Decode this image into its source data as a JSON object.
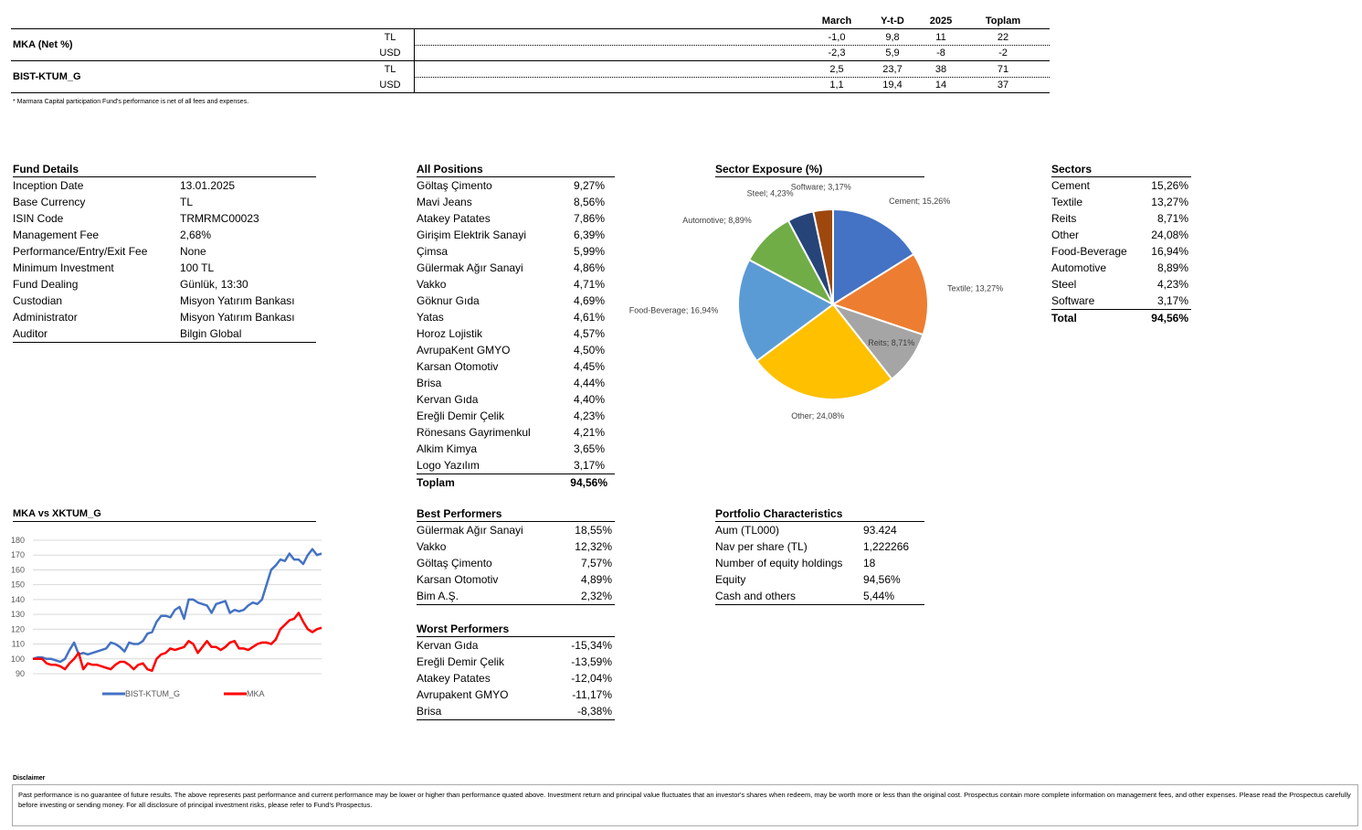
{
  "performance": {
    "columns": [
      "March",
      "Y-t-D",
      "2025",
      "Toplam"
    ],
    "groups": [
      {
        "name": "MKA (Net %)",
        "rows": [
          {
            "currency": "TL",
            "values": [
              "-1,0",
              "9,8",
              "11",
              "22"
            ]
          },
          {
            "currency": "USD",
            "values": [
              "-2,3",
              "5,9",
              "-8",
              "-2"
            ]
          }
        ]
      },
      {
        "name": "BIST-KTUM_G",
        "rows": [
          {
            "currency": "TL",
            "values": [
              "2,5",
              "23,7",
              "38",
              "71"
            ]
          },
          {
            "currency": "USD",
            "values": [
              "1,1",
              "19,4",
              "14",
              "37"
            ]
          }
        ]
      }
    ],
    "note": "* Marmara Capital participation Fund's performance is net of all fees and expenses."
  },
  "fund_details": {
    "title": "Fund Details",
    "rows": [
      [
        "Inception Date",
        "13.01.2025"
      ],
      [
        "Base Currency",
        "TL"
      ],
      [
        "ISIN Code",
        "TRMRMC00023"
      ],
      [
        "Management Fee",
        "2,68%"
      ],
      [
        "Performance/Entry/Exit Fee",
        "None"
      ],
      [
        "Minimum Investment",
        "100 TL"
      ],
      [
        "Fund Dealing",
        "Günlük, 13:30"
      ],
      [
        "Custodian",
        "Misyon Yatırım Bankası"
      ],
      [
        "Administrator",
        "Misyon Yatırım Bankası"
      ],
      [
        "Auditor",
        "Bilgin Global"
      ]
    ]
  },
  "all_positions": {
    "title": "All Positions",
    "rows": [
      [
        "Göltaş Çimento",
        "9,27%"
      ],
      [
        "Mavi Jeans",
        "8,56%"
      ],
      [
        "Atakey Patates",
        "7,86%"
      ],
      [
        "Girişim Elektrik Sanayi",
        "6,39%"
      ],
      [
        "Çimsa",
        "5,99%"
      ],
      [
        "Gülermak Ağır Sanayi",
        "4,86%"
      ],
      [
        "Vakko",
        "4,71%"
      ],
      [
        "Göknur Gıda",
        "4,69%"
      ],
      [
        "Yatas",
        "4,61%"
      ],
      [
        "Horoz Lojistik",
        "4,57%"
      ],
      [
        "AvrupaKent GMYO",
        "4,50%"
      ],
      [
        "Karsan Otomotiv",
        "4,45%"
      ],
      [
        "Brisa",
        "4,44%"
      ],
      [
        "Kervan Gıda",
        "4,40%"
      ],
      [
        "Ereğli Demir Çelik",
        "4,23%"
      ],
      [
        "Rönesans Gayrimenkul",
        "4,21%"
      ],
      [
        "Alkim Kimya",
        "3,65%"
      ],
      [
        "Logo Yazılım",
        "3,17%"
      ]
    ],
    "total": [
      "Toplam",
      "94,56%"
    ]
  },
  "sectors": {
    "title": "Sectors",
    "rows": [
      [
        "Cement",
        "15,26%"
      ],
      [
        "Textile",
        "13,27%"
      ],
      [
        "Reits",
        "8,71%"
      ],
      [
        "Other",
        "24,08%"
      ],
      [
        "Food-Beverage",
        "16,94%"
      ],
      [
        "Automotive",
        "8,89%"
      ],
      [
        "Steel",
        "4,23%"
      ],
      [
        "Software",
        "3,17%"
      ]
    ],
    "total": [
      "Total",
      "94,56%"
    ]
  },
  "best_performers": {
    "title": "Best Performers",
    "rows": [
      [
        "Gülermak Ağır Sanayi",
        "18,55%"
      ],
      [
        "Vakko",
        "12,32%"
      ],
      [
        "Göltaş Çimento",
        "7,57%"
      ],
      [
        "Karsan Otomotiv",
        "4,89%"
      ],
      [
        "Bim A.Ş.",
        "2,32%"
      ]
    ]
  },
  "worst_performers": {
    "title": "Worst Performers",
    "rows": [
      [
        "Kervan Gıda",
        "-15,34%"
      ],
      [
        "Ereğli Demir Çelik",
        "-13,59%"
      ],
      [
        "Atakey Patates",
        "-12,04%"
      ],
      [
        "Avrupakent GMYO",
        "-11,17%"
      ],
      [
        "Brisa",
        "-8,38%"
      ]
    ]
  },
  "portfolio": {
    "title": "Portfolio Characteristics",
    "rows": [
      [
        "Aum (TL000)",
        "93.424"
      ],
      [
        "Nav per share (TL)",
        "1,222266"
      ],
      [
        "Number of equity holdings",
        "18"
      ],
      [
        "Equity",
        "94,56%"
      ],
      [
        "Cash and others",
        "5,44%"
      ]
    ]
  },
  "chart_data": [
    {
      "type": "pie",
      "title": "Sector Exposure (%)",
      "slices": [
        {
          "label": "Cement",
          "value": 15.26,
          "text": "Cement; 15,26%",
          "color": "#4472C4"
        },
        {
          "label": "Textile",
          "value": 13.27,
          "text": "Textile; 13,27%",
          "color": "#ED7D31"
        },
        {
          "label": "Reits",
          "value": 8.71,
          "text": "Reits; 8,71%",
          "color": "#A5A5A5"
        },
        {
          "label": "Other",
          "value": 24.08,
          "text": "Other; 24,08%",
          "color": "#FFC000"
        },
        {
          "label": "Food-Beverage",
          "value": 16.94,
          "text": "Food-Beverage; 16,94%",
          "color": "#5B9BD5"
        },
        {
          "label": "Automotive",
          "value": 8.89,
          "text": "Automotive; 8,89%",
          "color": "#70AD47"
        },
        {
          "label": "Steel",
          "value": 4.23,
          "text": "Steel; 4,23%",
          "color": "#264478"
        },
        {
          "label": "Software",
          "value": 3.17,
          "text": "Software; 3,17%",
          "color": "#9E480E"
        }
      ]
    },
    {
      "type": "line",
      "title": "MKA vs XKTUM_G",
      "ylim": [
        90,
        180
      ],
      "yticks": [
        90,
        100,
        110,
        120,
        130,
        140,
        150,
        160,
        170,
        180
      ],
      "grid": true,
      "legend": "bottom",
      "series": [
        {
          "name": "BIST-KTUM_G",
          "color": "#4472C4",
          "values": [
            100,
            101,
            101,
            100,
            100,
            99,
            98,
            100,
            106,
            111,
            103,
            104,
            103,
            104,
            105,
            106,
            107,
            111,
            110,
            108,
            105,
            111,
            110,
            110,
            112,
            117,
            118,
            125,
            129,
            129,
            128,
            133,
            135,
            127,
            140,
            140,
            138,
            137,
            136,
            131,
            137,
            138,
            139,
            131,
            133,
            132,
            133,
            136,
            138,
            137,
            140,
            150,
            160,
            163,
            167,
            166,
            171,
            167,
            167,
            164,
            170,
            174,
            170,
            171
          ]
        },
        {
          "name": "MKA",
          "color": "#FF0000",
          "values": [
            100,
            100,
            100,
            97,
            96,
            96,
            95,
            93,
            97,
            100,
            104,
            93,
            97,
            96,
            96,
            95,
            94,
            93,
            96,
            98,
            98,
            96,
            93,
            96,
            97,
            93,
            92,
            100,
            103,
            104,
            107,
            106,
            107,
            108,
            112,
            110,
            104,
            108,
            112,
            108,
            108,
            106,
            108,
            111,
            112,
            107,
            107,
            106,
            108,
            110,
            111,
            111,
            110,
            113,
            120,
            123,
            126,
            127,
            131,
            125,
            120,
            118,
            120,
            121
          ]
        }
      ]
    }
  ],
  "disclaimer": {
    "title": "Disclaimer",
    "text": "Past performance is no guarantee of future results. The above represents past performance and current performance may be lower or higher than performance quated above. Investment return and principal value fluctuates that an investor's shares when redeem, may be worth more or less than the original cost. Prospectus contain  more complete information on management fees, and other expenses. Please read the Prospectus carefully before investing or sending money. For all disclosure of principal investment risks, please refer to Fund's Prospectus."
  }
}
